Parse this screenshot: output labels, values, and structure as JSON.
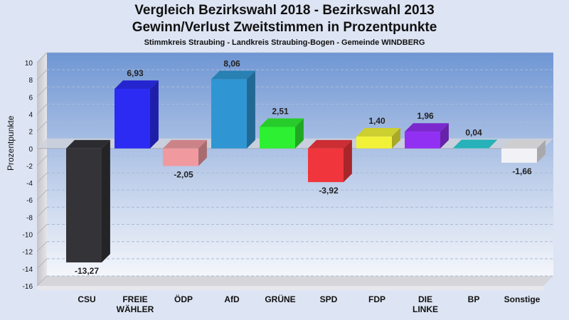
{
  "title": "Vergleich Bezirkswahl 2018 - Bezirkswahl 2013",
  "subtitle": "Gewinn/Verlust Zweitstimmen in Prozentpunkte",
  "subsubtitle": "Stimmkreis Straubing - Landkreis Straubing-Bogen - Gemeinde WINDBERG",
  "chart_data": {
    "type": "bar",
    "title": "Vergleich Bezirkswahl 2018 - Bezirkswahl 2013",
    "subtitle": "Gewinn/Verlust Zweitstimmen in Prozentpunkte",
    "xlabel": "",
    "ylabel": "Prozentpunkte",
    "ylim": [
      -16,
      10
    ],
    "yticks": [
      10,
      8,
      6,
      4,
      2,
      0,
      -2,
      -4,
      -6,
      -8,
      -10,
      -12,
      -14,
      -16
    ],
    "grid": true,
    "categories": [
      {
        "label": "CSU",
        "label2": "",
        "value": -13.27,
        "value_label": "-13,27",
        "color": "#343438"
      },
      {
        "label": "FREIE",
        "label2": "WÄHLER",
        "value": 6.93,
        "value_label": "6,93",
        "color": "#2b2bf4"
      },
      {
        "label": "ÖDP",
        "label2": "",
        "value": -2.05,
        "value_label": "-2,05",
        "color": "#f09aa0"
      },
      {
        "label": "AfD",
        "label2": "",
        "value": 8.06,
        "value_label": "8,06",
        "color": "#2f96d3"
      },
      {
        "label": "GRÜNE",
        "label2": "",
        "value": 2.51,
        "value_label": "2,51",
        "color": "#2ef032"
      },
      {
        "label": "SPD",
        "label2": "",
        "value": -3.92,
        "value_label": "-3,92",
        "color": "#f0363c"
      },
      {
        "label": "FDP",
        "label2": "",
        "value": 1.4,
        "value_label": "1,40",
        "color": "#f1f238"
      },
      {
        "label": "DIE",
        "label2": "LINKE",
        "value": 1.96,
        "value_label": "1,96",
        "color": "#9130f2"
      },
      {
        "label": "BP",
        "label2": "",
        "value": 0.04,
        "value_label": "0,04",
        "color": "#2ed0d8"
      },
      {
        "label": "Sonstige",
        "label2": "",
        "value": -1.66,
        "value_label": "-1,66",
        "color": "#f2f2f6"
      }
    ]
  }
}
